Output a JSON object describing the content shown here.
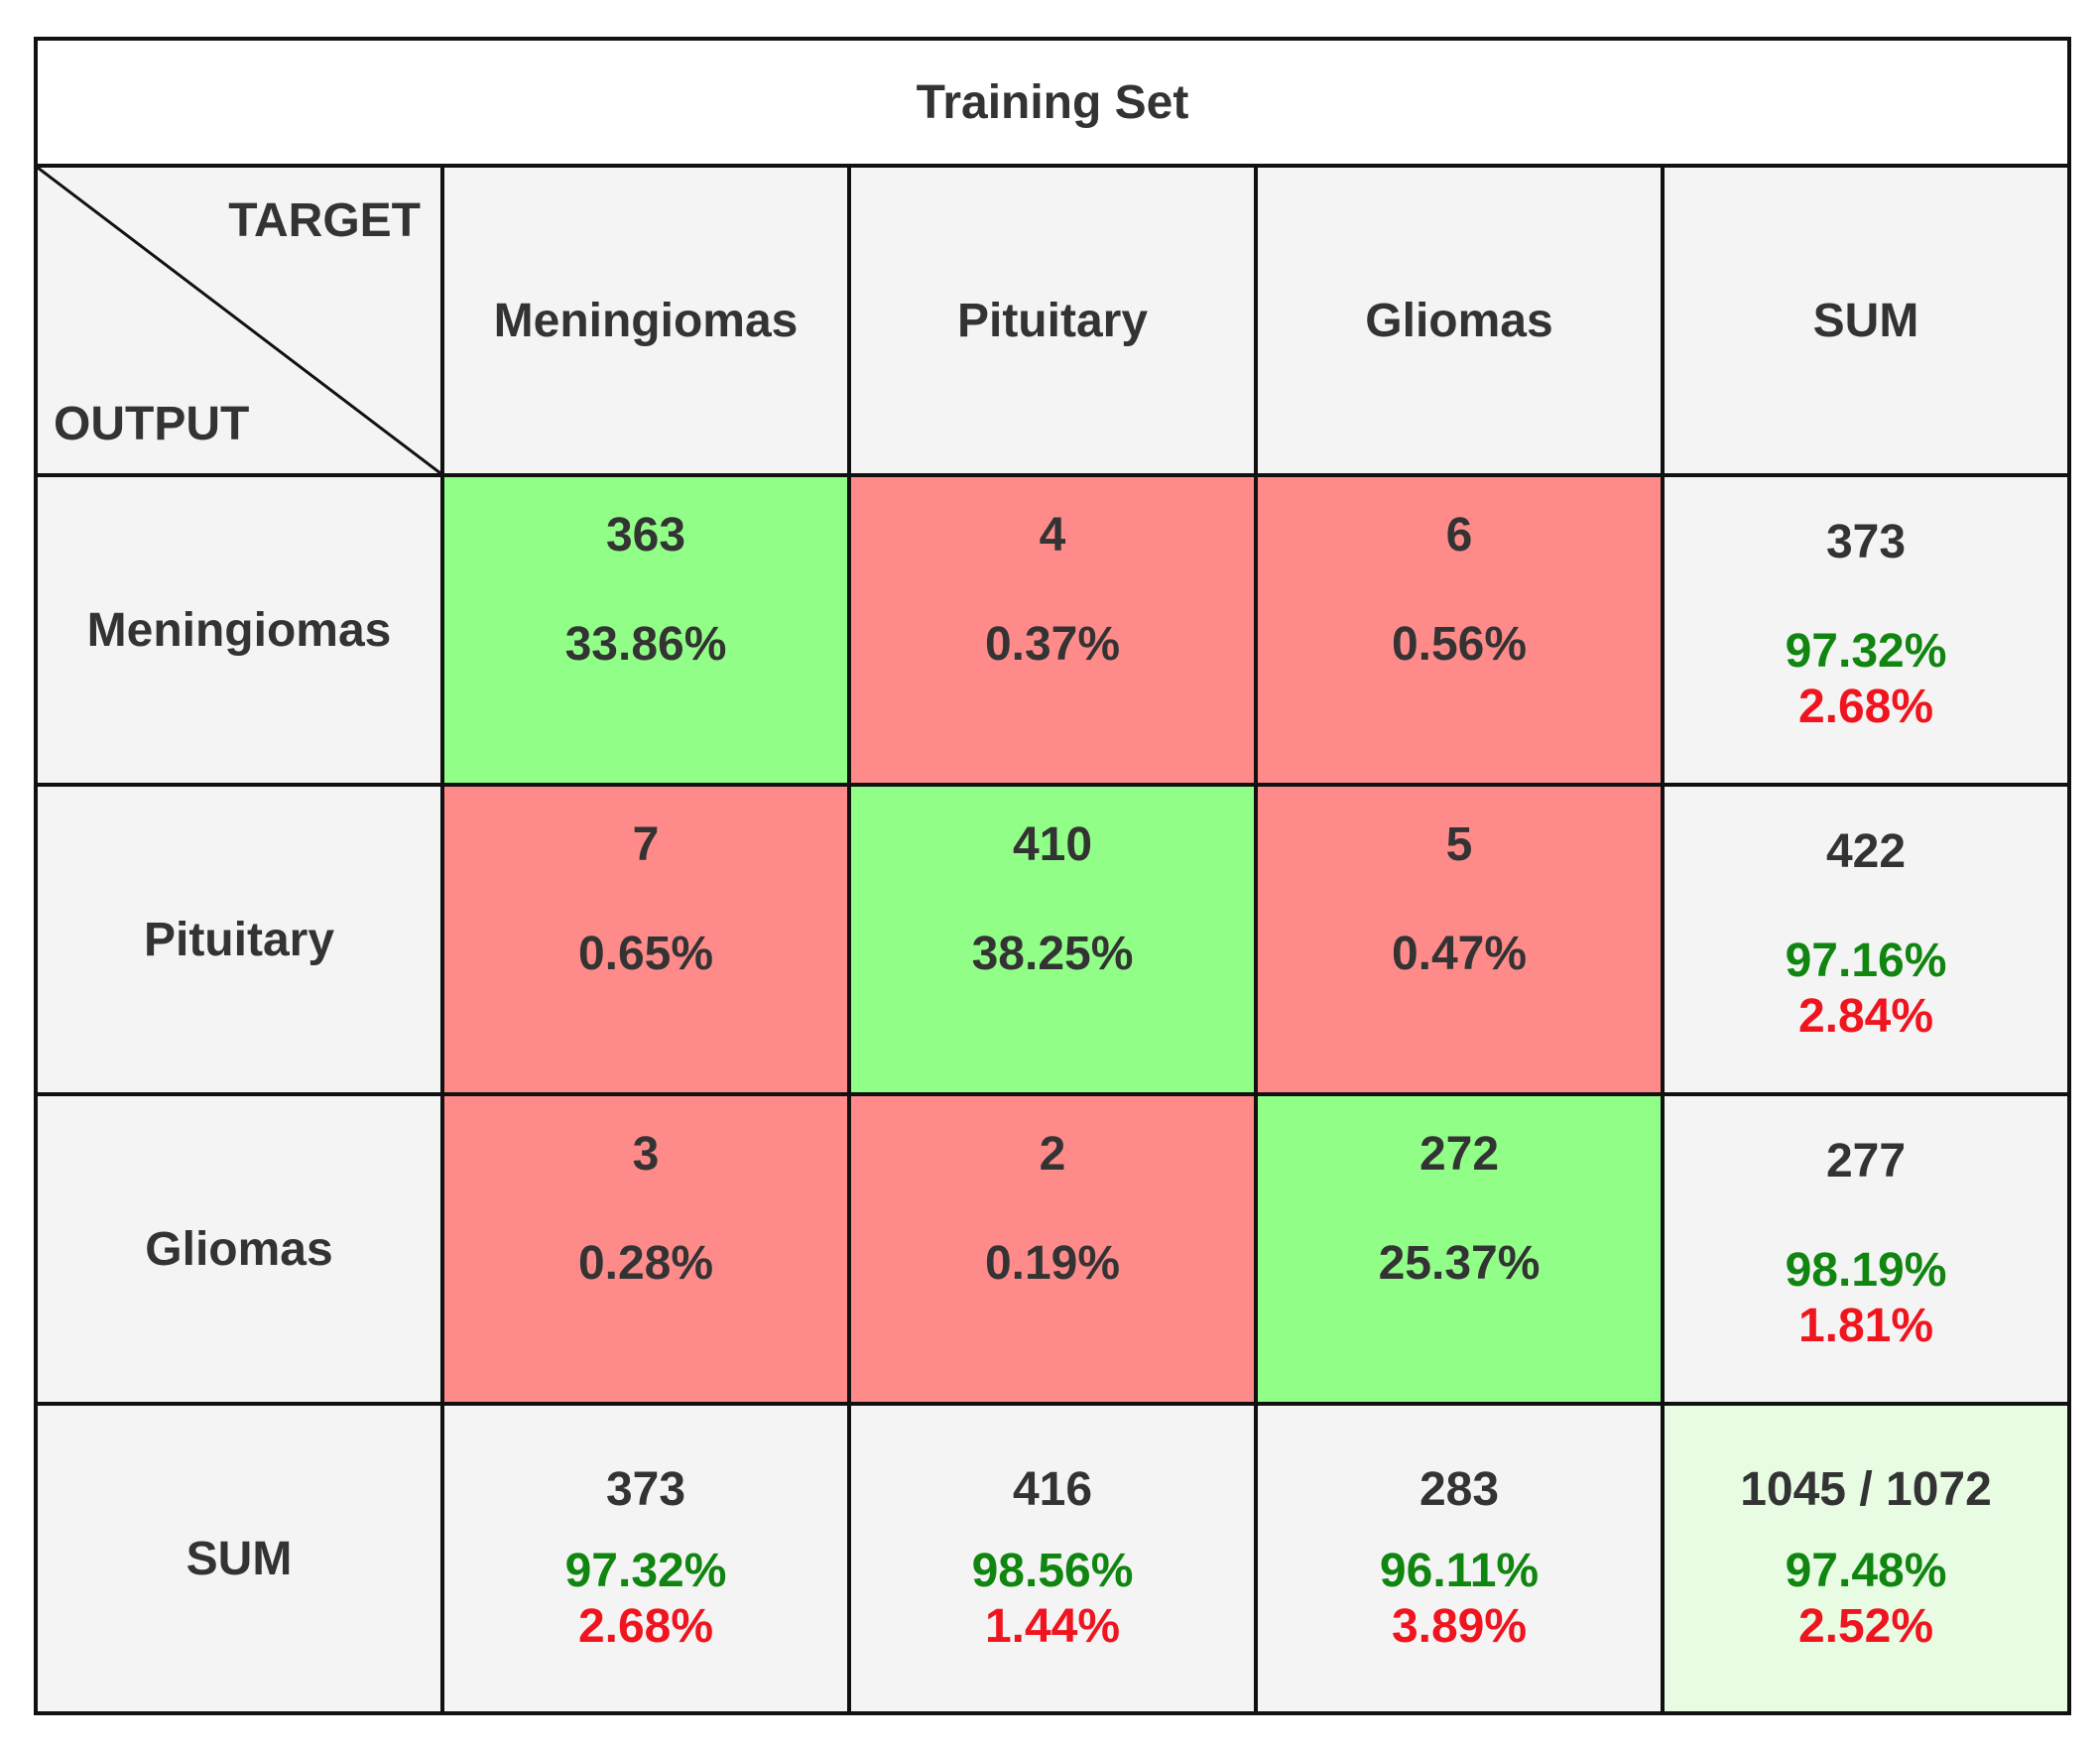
{
  "chart_data": {
    "type": "table",
    "title": "Training Set",
    "corner": {
      "target_label": "TARGET",
      "output_label": "OUTPUT"
    },
    "columns": [
      "Meningiomas",
      "Pituitary",
      "Gliomas",
      "SUM"
    ],
    "rows": [
      {
        "label": "Meningiomas",
        "cells": [
          {
            "count": "363",
            "percent": "33.86%"
          },
          {
            "count": "4",
            "percent": "0.37%"
          },
          {
            "count": "6",
            "percent": "0.56%"
          }
        ],
        "sum": {
          "count": "373",
          "correct": "97.32%",
          "error": "2.68%"
        }
      },
      {
        "label": "Pituitary",
        "cells": [
          {
            "count": "7",
            "percent": "0.65%"
          },
          {
            "count": "410",
            "percent": "38.25%"
          },
          {
            "count": "5",
            "percent": "0.47%"
          }
        ],
        "sum": {
          "count": "422",
          "correct": "97.16%",
          "error": "2.84%"
        }
      },
      {
        "label": "Gliomas",
        "cells": [
          {
            "count": "3",
            "percent": "0.28%"
          },
          {
            "count": "2",
            "percent": "0.19%"
          },
          {
            "count": "272",
            "percent": "25.37%"
          }
        ],
        "sum": {
          "count": "277",
          "correct": "98.19%",
          "error": "1.81%"
        }
      }
    ],
    "sum_row": {
      "label": "SUM",
      "cells": [
        {
          "count": "373",
          "correct": "97.32%",
          "error": "2.68%"
        },
        {
          "count": "416",
          "correct": "98.56%",
          "error": "1.44%"
        },
        {
          "count": "283",
          "correct": "96.11%",
          "error": "3.89%"
        }
      ],
      "total": {
        "count": "1045 / 1072",
        "correct": "97.48%",
        "error": "2.52%"
      }
    },
    "colors": {
      "diagonal": "#91fe88",
      "off_diagonal": "#fe8b8a",
      "summary": "#f4f4f4",
      "grand_total": "#e7fce3",
      "correct_text": "#108510",
      "error_text": "#f0141e"
    }
  }
}
